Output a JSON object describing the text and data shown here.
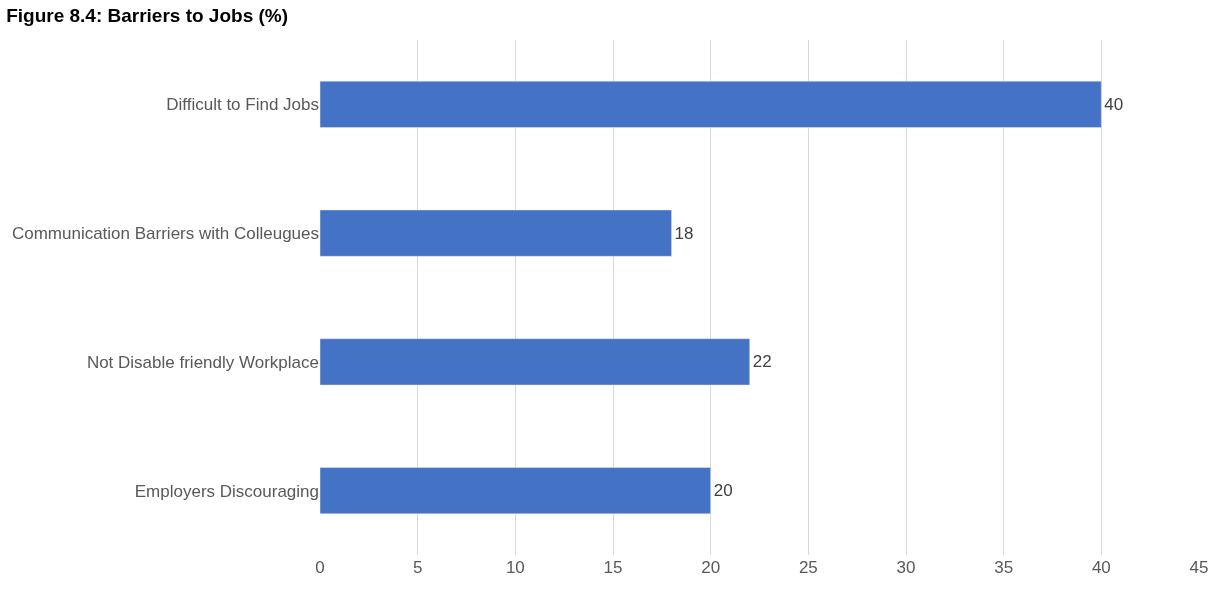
{
  "chart_data": {
    "type": "bar",
    "orientation": "horizontal",
    "title": "Figure 8.4: Barriers to Jobs (%)",
    "categories": [
      "Difficult to Find Jobs",
      "Communication Barriers with Colleugues",
      "Not Disable friendly Workplace",
      "Employers Discouraging"
    ],
    "values": [
      40,
      18,
      22,
      20
    ],
    "color": "#4472c4",
    "data_labels": true,
    "xlim": [
      0,
      45
    ],
    "xticks": [
      0,
      5,
      10,
      15,
      20,
      25,
      30,
      35,
      40,
      45
    ],
    "grid": "x",
    "legend": false
  }
}
